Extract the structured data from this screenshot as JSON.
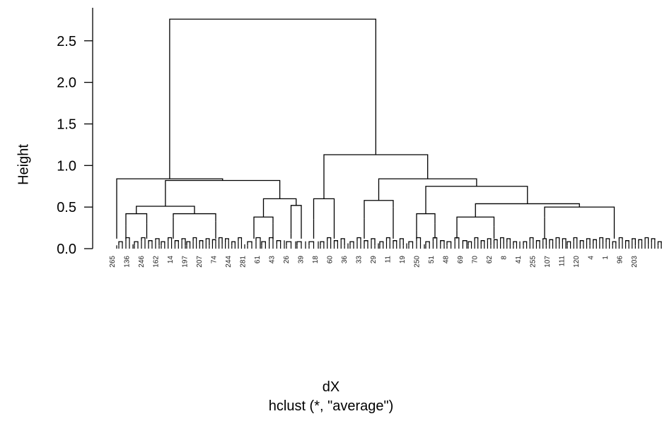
{
  "chart_data": {
    "type": "dendrogram",
    "method": "average",
    "xlabel": "dX",
    "subtitle": "hclust (*, \"average\")",
    "ylabel": "Height",
    "ylim": [
      0,
      2.8
    ],
    "y_ticks": [
      "0.0",
      "0.5",
      "1.0",
      "1.5",
      "2.0",
      "2.5"
    ],
    "y_tick_values": [
      0,
      0.5,
      1.0,
      1.5,
      2.0,
      2.5
    ],
    "root_height": 2.76,
    "merges": [
      {
        "cluster": "root",
        "height": 2.76,
        "children": [
          "left-main",
          "right-main"
        ]
      },
      {
        "cluster": "left-main",
        "height": 0.84,
        "children": [
          "left-outlier",
          "left-core"
        ]
      },
      {
        "cluster": "left-core",
        "height": 0.82,
        "children": [
          "left-a",
          "left-b"
        ]
      },
      {
        "cluster": "left-a",
        "height": 0.51,
        "children": [
          "left-a1",
          "left-a2"
        ]
      },
      {
        "cluster": "left-b",
        "height": 0.6,
        "children": [
          "left-b1",
          "left-b2"
        ]
      },
      {
        "cluster": "right-main",
        "height": 1.13,
        "children": [
          "right-a",
          "right-b"
        ]
      },
      {
        "cluster": "right-a",
        "height": 0.6,
        "children": [
          "right-a1",
          "right-a2"
        ]
      },
      {
        "cluster": "right-b",
        "height": 0.84,
        "children": [
          "right-b1",
          "right-b2"
        ]
      },
      {
        "cluster": "right-b2",
        "height": 0.75,
        "children": [
          "right-b2a",
          "right-b2b"
        ]
      },
      {
        "cluster": "right-b2b",
        "height": 0.54,
        "children": [
          "right-b2b1",
          "right-b2b2"
        ]
      }
    ],
    "leaf_labels_partial": [
      "265",
      "136",
      "246",
      "162",
      "14",
      "197",
      "207",
      "74",
      "244",
      "281",
      "61",
      "43",
      "26",
      "39",
      "18",
      "60",
      "36",
      "33",
      "29",
      "11",
      "19",
      "250",
      "51",
      "48",
      "69",
      "70",
      "62",
      "8",
      "41",
      "255",
      "107",
      "111",
      "120",
      "4",
      "1",
      "96",
      "203"
    ]
  }
}
